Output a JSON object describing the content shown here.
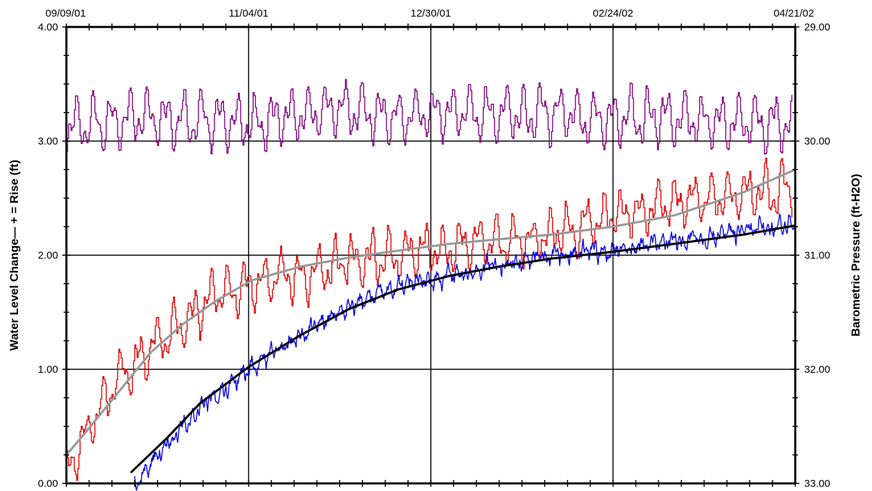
{
  "chart_data": {
    "type": "line",
    "title": "",
    "ylabel": "Water Level Change— + = Rise (ft)",
    "y2label": "Barometric Pressure (ft-H2O)",
    "x_tick_labels": [
      "09/09/01",
      "11/04/01",
      "12/30/01",
      "02/24/02",
      "04/21/02"
    ],
    "x_ticks": [
      "2001-09-09",
      "2001-11-04",
      "2001-12-30",
      "2002-02-24",
      "2002-04-21"
    ],
    "xlim": [
      "2001-09-09",
      "2002-04-21"
    ],
    "ylim": [
      0,
      4
    ],
    "y_ticks": [
      0,
      1,
      2,
      3,
      4
    ],
    "y_tick_labels": [
      "0.00",
      "1.00",
      "2.00",
      "3.00",
      "4.00"
    ],
    "y2lim": [
      33,
      29
    ],
    "y2_ticks": [
      33,
      32,
      31,
      30,
      29
    ],
    "y2_tick_labels": [
      "33.00",
      "32.00",
      "31.00",
      "30.00",
      "29.00"
    ],
    "y2_inverted": true,
    "grid": true,
    "legend": "none",
    "series": [
      {
        "color": "#800080",
        "axis": "right",
        "style": "noisy",
        "x": [
          "2001-09-09",
          "2001-10-01",
          "2001-10-20",
          "2001-11-10",
          "2001-11-30",
          "2001-12-20",
          "2002-01-10",
          "2002-01-30",
          "2002-02-20",
          "2002-03-10",
          "2002-04-01",
          "2002-04-20"
        ],
        "values": [
          29.88,
          29.8,
          29.82,
          29.84,
          29.7,
          29.78,
          29.74,
          29.76,
          29.8,
          29.78,
          29.82,
          29.85
        ]
      },
      {
        "color": "#e00000",
        "axis": "left",
        "style": "noisy",
        "x": [
          "2001-09-09",
          "2001-09-15",
          "2001-09-25",
          "2001-10-10",
          "2001-10-25",
          "2001-11-05",
          "2001-11-20",
          "2001-12-05",
          "2001-12-20",
          "2002-01-10",
          "2002-01-30",
          "2002-02-20",
          "2002-03-10",
          "2002-03-30",
          "2002-04-20"
        ],
        "values": [
          0.1,
          0.45,
          0.95,
          1.3,
          1.65,
          1.75,
          1.85,
          1.95,
          2.0,
          2.1,
          2.15,
          2.3,
          2.45,
          2.5,
          2.6
        ]
      },
      {
        "color": "#999999",
        "axis": "left",
        "style": "smooth",
        "x": [
          "2001-09-09",
          "2001-09-15",
          "2001-09-25",
          "2001-10-05",
          "2001-10-15",
          "2001-10-25",
          "2001-11-05",
          "2001-11-20",
          "2001-12-05",
          "2001-12-20",
          "2002-01-05",
          "2002-01-20",
          "2002-02-05",
          "2002-02-24",
          "2002-03-15",
          "2002-04-05",
          "2002-04-21"
        ],
        "values": [
          0.25,
          0.45,
          0.8,
          1.15,
          1.4,
          1.6,
          1.78,
          1.9,
          1.98,
          2.04,
          2.1,
          2.14,
          2.18,
          2.25,
          2.35,
          2.55,
          2.75
        ]
      },
      {
        "color": "#0000e0",
        "axis": "left",
        "style": "noisy",
        "x": [
          "2001-09-30",
          "2001-10-10",
          "2001-10-20",
          "2001-11-04",
          "2001-11-20",
          "2001-12-05",
          "2001-12-20",
          "2002-01-05",
          "2002-01-20",
          "2002-02-05",
          "2002-02-24",
          "2002-03-15",
          "2002-04-05",
          "2002-04-21"
        ],
        "values": [
          0.0,
          0.35,
          0.65,
          1.0,
          1.3,
          1.55,
          1.72,
          1.83,
          1.92,
          1.98,
          2.05,
          2.12,
          2.2,
          2.28
        ]
      },
      {
        "color": "#000000",
        "axis": "left",
        "style": "smooth",
        "x": [
          "2001-09-29",
          "2001-10-10",
          "2001-10-20",
          "2001-11-04",
          "2001-11-20",
          "2001-12-05",
          "2001-12-20",
          "2002-01-05",
          "2002-01-20",
          "2002-02-05",
          "2002-02-24",
          "2002-03-15",
          "2002-04-05",
          "2002-04-21"
        ],
        "values": [
          0.1,
          0.4,
          0.7,
          1.02,
          1.3,
          1.53,
          1.7,
          1.82,
          1.9,
          1.97,
          2.03,
          2.1,
          2.18,
          2.26
        ]
      }
    ]
  }
}
